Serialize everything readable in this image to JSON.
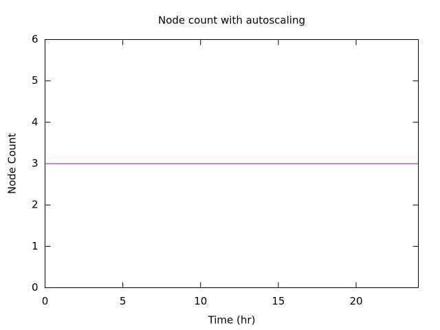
{
  "chart_data": {
    "type": "line",
    "title": "Node count with autoscaling",
    "x_label": "Time (hr)",
    "y_label": "Node Count",
    "x": [
      0,
      24
    ],
    "series": [
      {
        "color": "#9400d3",
        "values": [
          3,
          3
        ]
      }
    ],
    "xlim": [
      0,
      24
    ],
    "xticks": [
      0,
      5,
      10,
      15,
      20
    ],
    "ylim": [
      0,
      6
    ],
    "yticks": [
      0,
      1,
      2,
      3,
      4,
      5,
      6
    ],
    "grid": false
  }
}
